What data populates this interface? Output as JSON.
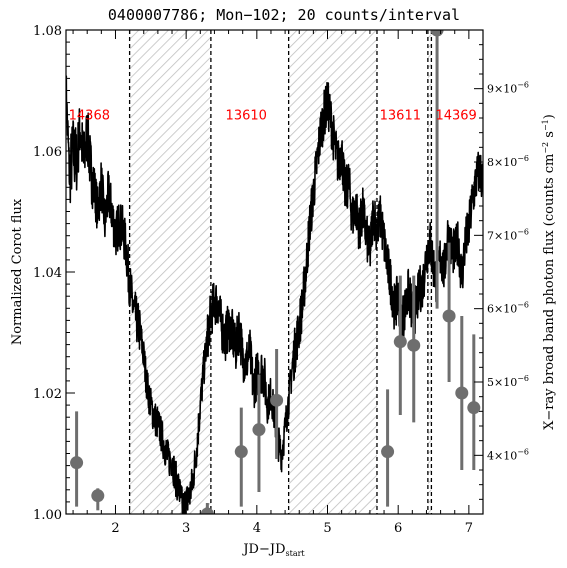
{
  "chart_data": {
    "type": "line",
    "title": "0400007786; Mon−102; 20 counts/interval",
    "xlabel": "JD−JD",
    "xlabel_sub": "start",
    "ylabel": "Normalized Corot flux",
    "ylabel_right_main": "X−ray broad band photon flux (counts cm",
    "ylabel_right_sup1": "−2",
    "ylabel_right_mid": " s",
    "ylabel_right_sup2": "−1",
    "ylabel_right_end": ")",
    "xlim": [
      1.3,
      7.2
    ],
    "ylim": [
      1.0,
      1.08
    ],
    "xticks": [
      {
        "value": 2,
        "label": "2"
      },
      {
        "value": 3,
        "label": "3"
      },
      {
        "value": 4,
        "label": "4"
      },
      {
        "value": 5,
        "label": "5"
      },
      {
        "value": 6,
        "label": "6"
      },
      {
        "value": 7,
        "label": "7"
      }
    ],
    "yticks": [
      {
        "value": 1.0,
        "label": "1.00"
      },
      {
        "value": 1.02,
        "label": "1.02"
      },
      {
        "value": 1.04,
        "label": "1.04"
      },
      {
        "value": 1.06,
        "label": "1.06"
      },
      {
        "value": 1.08,
        "label": "1.08"
      }
    ],
    "right_axis": {
      "ylim": [
        3.2e-06,
        9.8e-06
      ],
      "ticks": [
        {
          "value": 4e-06,
          "mant": "4",
          "exp": "−6"
        },
        {
          "value": 5e-06,
          "mant": "5",
          "exp": "−6"
        },
        {
          "value": 6e-06,
          "mant": "6",
          "exp": "−6"
        },
        {
          "value": 7e-06,
          "mant": "7",
          "exp": "−6"
        },
        {
          "value": 8e-06,
          "mant": "8",
          "exp": "−6"
        },
        {
          "value": 9e-06,
          "mant": "9",
          "exp": "−6"
        }
      ]
    },
    "intervals": [
      {
        "x0": 2.2,
        "x1": 3.35,
        "shaded": true
      },
      {
        "x0": 4.45,
        "x1": 5.7,
        "shaded": true
      },
      {
        "x0": 6.42,
        "x1": 6.47,
        "shaded": true
      }
    ],
    "divider_lines": [
      2.2,
      3.35,
      4.45,
      5.7,
      6.42,
      6.47
    ],
    "obsids": [
      {
        "label": "14368",
        "x": 1.63,
        "y": 1.066
      },
      {
        "label": "13610",
        "x": 3.85,
        "y": 1.066
      },
      {
        "label": "13611",
        "x": 6.03,
        "y": 1.066
      },
      {
        "label": "14369",
        "x": 6.82,
        "y": 1.066
      }
    ],
    "series": [
      {
        "x": [
          1.3,
          1.35,
          1.4,
          1.45,
          1.5,
          1.55,
          1.6,
          1.65,
          1.7,
          1.75,
          1.8,
          1.85,
          1.9,
          1.95,
          2.0,
          2.05,
          2.1,
          2.15,
          2.2,
          2.25,
          2.3,
          2.35,
          2.4,
          2.45,
          2.5,
          2.55,
          2.6,
          2.65,
          2.7,
          2.75,
          2.8,
          2.85,
          2.9,
          2.95,
          3.0,
          3.05,
          3.1,
          3.15,
          3.2,
          3.25,
          3.3,
          3.35,
          3.4,
          3.45,
          3.5,
          3.55,
          3.6,
          3.65,
          3.7,
          3.75,
          3.8,
          3.85,
          3.9,
          3.95,
          4.0,
          4.05,
          4.1,
          4.15,
          4.2,
          4.25,
          4.3,
          4.35,
          4.4,
          4.45,
          4.5,
          4.55,
          4.6,
          4.65,
          4.7,
          4.75,
          4.8,
          4.85,
          4.9,
          4.95,
          5.0,
          5.05,
          5.1,
          5.15,
          5.2,
          5.25,
          5.3,
          5.35,
          5.4,
          5.45,
          5.5,
          5.55,
          5.6,
          5.65,
          5.7,
          5.75,
          5.8,
          5.85,
          5.9,
          5.95,
          6.0,
          6.05,
          6.1,
          6.15,
          6.2,
          6.25,
          6.3,
          6.35,
          6.4,
          6.45,
          6.5,
          6.55,
          6.6,
          6.65,
          6.7,
          6.75,
          6.8,
          6.85,
          6.9,
          6.95,
          7.0,
          7.05,
          7.1,
          7.15,
          7.2
        ],
        "y": [
          1.07,
          1.056,
          1.06,
          1.058,
          1.064,
          1.058,
          1.063,
          1.057,
          1.054,
          1.05,
          1.055,
          1.048,
          1.053,
          1.05,
          1.046,
          1.048,
          1.047,
          1.044,
          1.038,
          1.034,
          1.032,
          1.03,
          1.026,
          1.021,
          1.018,
          1.016,
          1.015,
          1.013,
          1.011,
          1.009,
          1.009,
          1.006,
          1.004,
          1.001,
          1.002,
          1.003,
          1.006,
          1.011,
          1.018,
          1.024,
          1.029,
          1.033,
          1.035,
          1.035,
          1.031,
          1.029,
          1.031,
          1.03,
          1.027,
          1.031,
          1.026,
          1.025,
          1.027,
          1.021,
          1.023,
          1.024,
          1.023,
          1.018,
          1.02,
          1.016,
          1.012,
          1.01,
          1.014,
          1.019,
          1.024,
          1.028,
          1.031,
          1.035,
          1.041,
          1.048,
          1.053,
          1.058,
          1.063,
          1.066,
          1.068,
          1.065,
          1.061,
          1.058,
          1.06,
          1.053,
          1.055,
          1.049,
          1.051,
          1.047,
          1.05,
          1.046,
          1.043,
          1.05,
          1.047,
          1.049,
          1.045,
          1.041,
          1.038,
          1.034,
          1.036,
          1.032,
          1.034,
          1.037,
          1.033,
          1.034,
          1.037,
          1.038,
          1.043,
          1.045,
          1.041,
          1.038,
          1.043,
          1.04,
          1.046,
          1.044,
          1.043,
          1.045,
          1.039,
          1.045,
          1.047,
          1.052,
          1.055,
          1.057,
          1.055
        ],
        "noise": [
          0.004,
          0.006,
          0.006,
          0.005,
          0.005,
          0.005,
          0.005,
          0.005,
          0.004,
          0.004,
          0.004,
          0.004,
          0.004,
          0.004,
          0.004,
          0.004,
          0.004,
          0.004,
          0.004,
          0.004,
          0.004,
          0.003,
          0.003,
          0.003,
          0.003,
          0.003,
          0.003,
          0.003,
          0.003,
          0.003,
          0.003,
          0.003,
          0.003,
          0.003,
          0.003,
          0.003,
          0.003,
          0.003,
          0.003,
          0.003,
          0.004,
          0.004,
          0.004,
          0.004,
          0.004,
          0.004,
          0.004,
          0.004,
          0.004,
          0.004,
          0.004,
          0.004,
          0.004,
          0.004,
          0.004,
          0.004,
          0.004,
          0.003,
          0.003,
          0.003,
          0.003,
          0.003,
          0.003,
          0.003,
          0.004,
          0.004,
          0.004,
          0.004,
          0.004,
          0.004,
          0.004,
          0.004,
          0.004,
          0.004,
          0.004,
          0.004,
          0.004,
          0.004,
          0.004,
          0.004,
          0.004,
          0.004,
          0.004,
          0.004,
          0.004,
          0.004,
          0.004,
          0.004,
          0.004,
          0.004,
          0.004,
          0.004,
          0.004,
          0.004,
          0.004,
          0.004,
          0.004,
          0.004,
          0.004,
          0.004,
          0.004,
          0.004,
          0.004,
          0.004,
          0.004,
          0.004,
          0.004,
          0.004,
          0.004,
          0.004,
          0.004,
          0.004,
          0.004,
          0.004,
          0.004,
          0.004,
          0.004,
          0.004,
          0.004
        ]
      }
    ],
    "xray_points": [
      {
        "x": 1.45,
        "y": 3.9e-06,
        "ylo": 3.3e-06,
        "yhi": 4.6e-06
      },
      {
        "x": 1.75,
        "y": 3.45e-06,
        "ylo": 3.25e-06,
        "yhi": 3.55e-06
      },
      {
        "x": 3.3,
        "y": 3.2e-06,
        "ylo": 3.2e-06,
        "yhi": 3.35e-06
      },
      {
        "x": 3.78,
        "y": 4.05e-06,
        "ylo": 3.3e-06,
        "yhi": 4.65e-06
      },
      {
        "x": 4.03,
        "y": 4.35e-06,
        "ylo": 3.5e-06,
        "yhi": 5.1e-06
      },
      {
        "x": 4.28,
        "y": 4.75e-06,
        "ylo": 3.95e-06,
        "yhi": 5.45e-06
      },
      {
        "x": 5.85,
        "y": 4.05e-06,
        "ylo": 3.3e-06,
        "yhi": 4.9e-06
      },
      {
        "x": 6.03,
        "y": 5.55e-06,
        "ylo": 4.55e-06,
        "yhi": 6.45e-06
      },
      {
        "x": 6.22,
        "y": 5.5e-06,
        "ylo": 4.45e-06,
        "yhi": 6.45e-06
      },
      {
        "x": 6.55,
        "y": 9.8e-06,
        "ylo": 6e-06,
        "yhi": 9.8e-06
      },
      {
        "x": 6.72,
        "y": 5.9e-06,
        "ylo": 5e-06,
        "yhi": 6.9e-06
      },
      {
        "x": 6.9,
        "y": 4.85e-06,
        "ylo": 3.8e-06,
        "yhi": 5.9e-06
      },
      {
        "x": 7.07,
        "y": 4.65e-06,
        "ylo": 3.8e-06,
        "yhi": 5.65e-06
      }
    ],
    "grid": false,
    "legend": "none"
  }
}
